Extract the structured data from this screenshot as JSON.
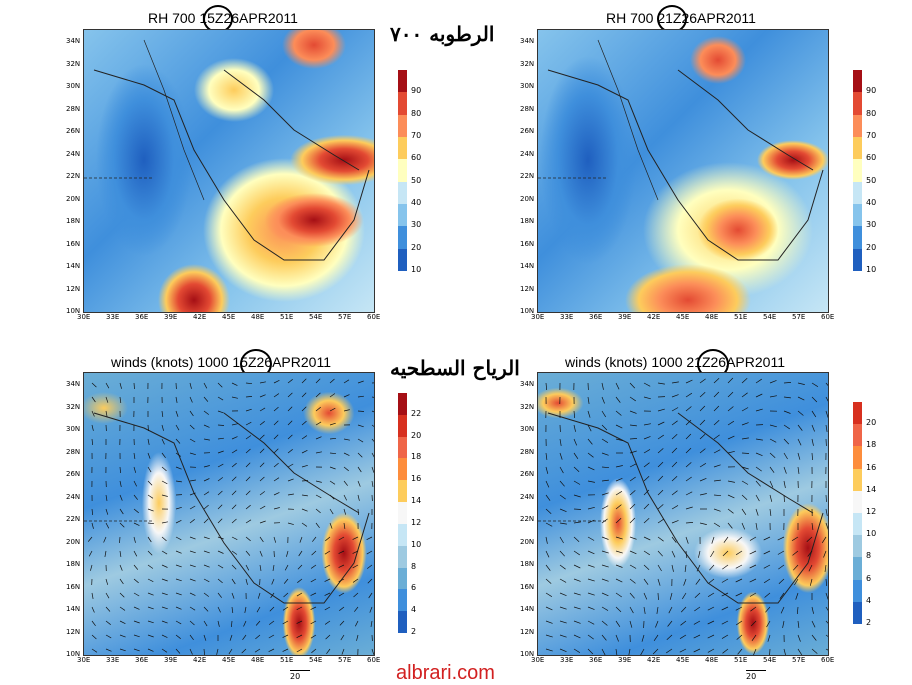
{
  "panels": [
    {
      "id": "rh15",
      "title": "RH 700 15Z26APR2011",
      "colorbar": [
        "90",
        "80",
        "70",
        "60",
        "50",
        "40",
        "30",
        "20",
        "10"
      ]
    },
    {
      "id": "rh21",
      "title": "RH 700 21Z26APR2011",
      "colorbar": [
        "90",
        "80",
        "70",
        "60",
        "50",
        "40",
        "30",
        "20",
        "10"
      ]
    },
    {
      "id": "wind15",
      "title": "winds (knots) 1000 15Z26APR2011",
      "colorbar": [
        "22",
        "20",
        "18",
        "16",
        "14",
        "12",
        "10",
        "8",
        "6",
        "4",
        "2"
      ]
    },
    {
      "id": "wind21",
      "title": "winds (knots) 1000 21Z26APR2011",
      "colorbar": [
        "20",
        "18",
        "16",
        "14",
        "12",
        "10",
        "8",
        "6",
        "4",
        "2"
      ]
    }
  ],
  "arabic_labels": {
    "humidity": "الرطوبه ٧٠٠",
    "winds": "الرياح السطحيه"
  },
  "lon_ticks": [
    "30E",
    "33E",
    "36E",
    "39E",
    "42E",
    "45E",
    "48E",
    "51E",
    "54E",
    "57E",
    "60E"
  ],
  "lat_ticks": [
    "34N",
    "32N",
    "30N",
    "28N",
    "26N",
    "24N",
    "22N",
    "20N",
    "18N",
    "16N",
    "14N",
    "12N",
    "10N"
  ],
  "wind_ref": "20",
  "watermark": "albrari.com",
  "colors": {
    "rh_scale": [
      "#a50f15",
      "#e34a33",
      "#fc8d59",
      "#fdcc5c",
      "#ffffbf",
      "#c6e6f5",
      "#86c4ec",
      "#3f8fdc",
      "#1f5fbf"
    ],
    "wind_scale": [
      "#a50f15",
      "#d7301f",
      "#ef6548",
      "#fd8d3c",
      "#fdcc5c",
      "#f7f7f7",
      "#c6e6f5",
      "#9ecae1",
      "#6baed6",
      "#3f8fdc",
      "#1f5fbf"
    ]
  }
}
